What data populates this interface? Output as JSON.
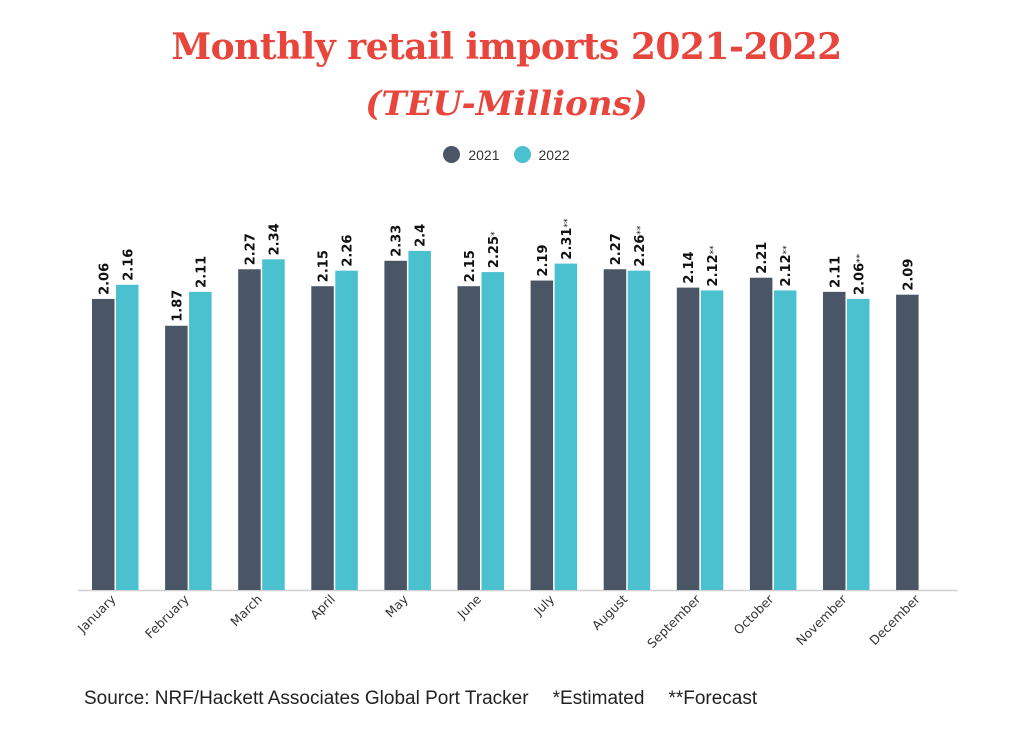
{
  "title": "Monthly retail imports 2021-2022",
  "subtitle": "(TEU-Millions)",
  "colors": {
    "s2021": "#4a5565",
    "s2022": "#4bc0cf",
    "title": "#e8453c"
  },
  "footer": {
    "source": "Source: NRF/Hackett Associates Global Port Tracker",
    "estimated": "*Estimated",
    "forecast": "**Forecast"
  },
  "chart_data": {
    "type": "bar",
    "title": "Monthly retail imports 2021-2022 (TEU-Millions)",
    "xlabel": "",
    "ylabel": "TEU-Millions",
    "ylim": [
      0,
      2.6
    ],
    "grid": false,
    "legend": "top-center",
    "categories": [
      "January",
      "February",
      "March",
      "April",
      "May",
      "June",
      "July",
      "August",
      "September",
      "October",
      "November",
      "December"
    ],
    "series": [
      {
        "name": "2021",
        "values": [
          2.06,
          1.87,
          2.27,
          2.15,
          2.33,
          2.15,
          2.19,
          2.27,
          2.14,
          2.21,
          2.11,
          2.09
        ],
        "labels": [
          "2.06",
          "1.87",
          "2.27",
          "2.15",
          "2.33",
          "2.15",
          "2.19",
          "2.27",
          "2.14",
          "2.21",
          "2.11",
          "2.09"
        ],
        "suffixes": [
          "",
          "",
          "",
          "",
          "",
          "",
          "",
          "",
          "",
          "",
          "",
          ""
        ]
      },
      {
        "name": "2022",
        "values": [
          2.16,
          2.11,
          2.34,
          2.26,
          2.4,
          2.25,
          2.31,
          2.26,
          2.12,
          2.12,
          2.06,
          null
        ],
        "labels": [
          "2.16",
          "2.11",
          "2.34",
          "2.26",
          "2.4",
          "2.25",
          "2.31",
          "2.26",
          "2.12",
          "2.12",
          "2.06",
          null
        ],
        "suffixes": [
          "",
          "",
          "",
          "",
          "",
          "*",
          "**",
          "**",
          "**",
          "**",
          "**",
          ""
        ]
      }
    ]
  }
}
